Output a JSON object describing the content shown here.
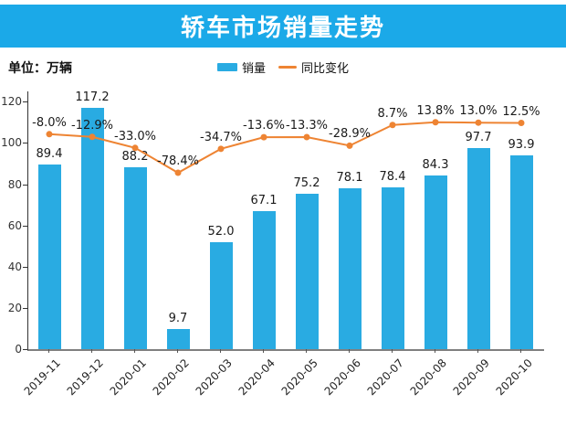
{
  "header": {
    "title": "轿车市场销量走势"
  },
  "unit_label": "单位：万辆",
  "legend": [
    {
      "label": "销量"
    },
    {
      "label": "同比变化"
    }
  ],
  "colors": {
    "banner": "#1ba9e8",
    "bar": "#29abe2",
    "line": "#ee8433",
    "label_text": "#1a1a1a"
  },
  "chart_data": {
    "type": "bar+line",
    "title": "轿车市场销量走势",
    "unit": "万辆",
    "categories": [
      "2019-11",
      "2019-12",
      "2020-01",
      "2020-02",
      "2020-03",
      "2020-04",
      "2020-05",
      "2020-06",
      "2020-07",
      "2020-08",
      "2020-09",
      "2020-10"
    ],
    "series": [
      {
        "name": "销量",
        "type": "bar",
        "color": "#29abe2",
        "values": [
          89.4,
          117.2,
          88.2,
          9.7,
          52.0,
          67.1,
          75.2,
          78.1,
          78.4,
          84.3,
          97.7,
          93.9
        ]
      },
      {
        "name": "同比变化",
        "type": "line",
        "color": "#ee8433",
        "value_unit": "%",
        "values": [
          -8.0,
          -12.9,
          -33.0,
          -78.4,
          -34.7,
          -13.6,
          -13.3,
          -28.9,
          8.7,
          13.8,
          13.0,
          12.5
        ]
      }
    ],
    "yticks": [
      0,
      20,
      40,
      60,
      80,
      100,
      120
    ],
    "ylim": [
      0,
      125
    ],
    "y2lim": [
      -400,
      70
    ],
    "grid": false,
    "legend_position": "top-center",
    "value_labels": true
  }
}
